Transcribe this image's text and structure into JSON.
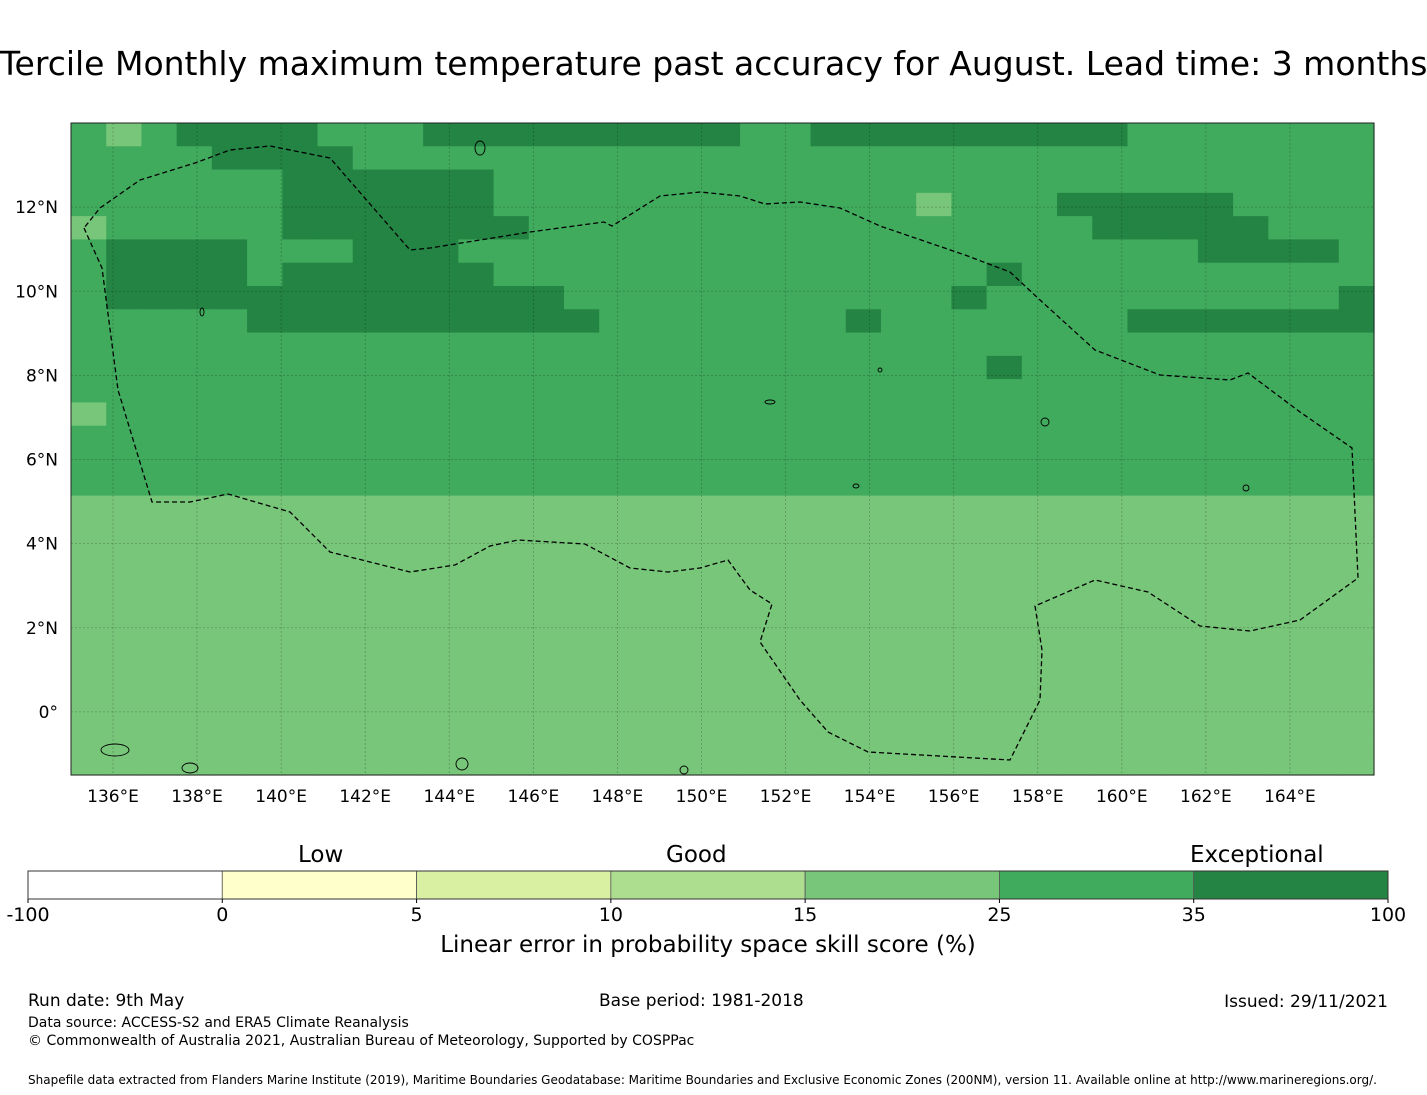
{
  "title": "Tercile Monthly maximum temperature past accuracy for August. Lead time: 3 months",
  "map": {
    "lon_ticks": [
      "136°E",
      "138°E",
      "140°E",
      "142°E",
      "144°E",
      "146°E",
      "148°E",
      "150°E",
      "152°E",
      "154°E",
      "156°E",
      "158°E",
      "160°E",
      "162°E",
      "164°E"
    ],
    "lat_ticks": [
      "12°N",
      "10°N",
      "8°N",
      "6°N",
      "4°N",
      "2°N",
      "0°"
    ],
    "lon_range": [
      135,
      166
    ],
    "lat_range": [
      -1.5,
      14
    ],
    "grid_step_deg": [
      0.833,
      0.555
    ],
    "grid_cols": 37,
    "grid_rows": 28,
    "skill_rows": [
      "5456666555666666666556666666665555555",
      "5555666655555555555555555555555555555",
      "5555556666665555555555555555555555555",
      "5555556666665555555555554555666665555",
      "4555556666666555555555555555566666555",
      "5666655566655555555555555555555566665",
      "5666656666665555555555555565555555555",
      "5666666666666655555555555655555555556",
      "5555566666666665555555655555556666666",
      "5555555555555555555555555555555555555",
      "5555555555555555555555555565555555555",
      "5555555555555555555555555555555555555",
      "4555555555555555555555555555555555555",
      "5555555555555555555555555555555555555",
      "5555555555555555555555555555555555555",
      "5555555555555555555555555555555555555",
      "4444444444444444444444444444444444444",
      "4444444444444444444444444444444444444",
      "4444444444444444444444444444444444444",
      "4444444444444444444444444444444444444",
      "4444444444444444444444444444444444444",
      "4444444444444444444444444444444444444",
      "4444444444444444444444444444444444444",
      "4444444444444444444444444444444444444",
      "4444444444444444444444444444444444444",
      "4444444444444444444444444444444444444",
      "4444444444444444444444444444444444444",
      "4444444444444444444444444444444444444"
    ]
  },
  "colorbar": {
    "bounds": [
      "-100",
      "0",
      "5",
      "10",
      "15",
      "25",
      "35",
      "100"
    ],
    "colors": [
      "#ffffff",
      "#ffffcc",
      "#d9f0a3",
      "#addd8e",
      "#78c679",
      "#41ab5d",
      "#238443"
    ],
    "categories": [
      "Low",
      "Good",
      "Exceptional"
    ],
    "label": "Linear error in probability space skill score (%)"
  },
  "footer": {
    "run_date": "Run date: 9th May",
    "base_period": "Base period: 1981-2018",
    "issued": "Issued: 29/11/2021",
    "data_source": "Data source: ACCESS-S2 and ERA5 Climate Reanalysis",
    "copyright": "© Commonwealth of Australia 2021, Australian Bureau of Meteorology, Supported by COSPPac",
    "shapefile": "Shapefile data extracted from Flanders Marine Institute (2019), Maritime Boundaries Geodatabase: Maritime Boundaries and Exclusive Economic Zones (200NM), version 11. Available online at http://www.marineregions.org/."
  }
}
